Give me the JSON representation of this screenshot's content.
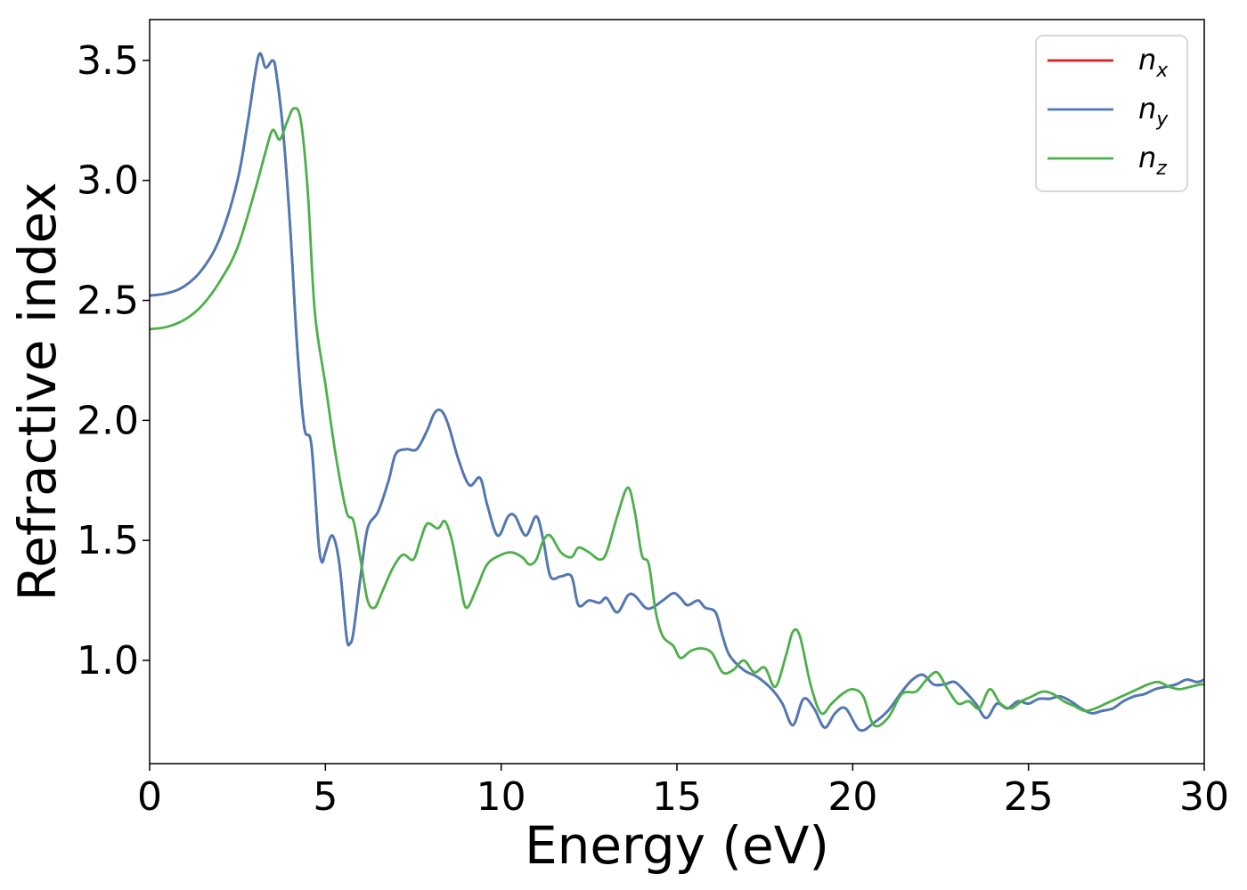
{
  "chart_data": {
    "type": "line",
    "title": "",
    "xlabel": "Energy (eV)",
    "ylabel": "Refractive index",
    "xlim": [
      0,
      30
    ],
    "ylim": [
      0.57,
      3.67
    ],
    "xticks": [
      0,
      5,
      10,
      15,
      20,
      25,
      30
    ],
    "xtick_labels": [
      "0",
      "5",
      "10",
      "15",
      "20",
      "25",
      "30"
    ],
    "yticks": [
      1.0,
      1.5,
      2.0,
      2.5,
      3.0,
      3.5
    ],
    "ytick_labels": [
      "1.0",
      "1.5",
      "2.0",
      "2.5",
      "3.0",
      "3.5"
    ],
    "grid": false,
    "legend_position": "top-right",
    "series": [
      {
        "name": "n",
        "subscript": "x",
        "color": "#e41a1c",
        "x": [
          0,
          0.5,
          1.0,
          1.5,
          2.0,
          2.5,
          2.8,
          3.1,
          3.3,
          3.5,
          3.6,
          3.8,
          4.0,
          4.2,
          4.4,
          4.6,
          4.8,
          4.9,
          5.0,
          5.2,
          5.4,
          5.6,
          5.7,
          5.8,
          6.0,
          6.2,
          6.5,
          6.8,
          7.0,
          7.3,
          7.6,
          7.9,
          8.1,
          8.3,
          8.5,
          8.8,
          9.1,
          9.4,
          9.6,
          9.9,
          10.2,
          10.4,
          10.7,
          11.0,
          11.2,
          11.4,
          11.7,
          12.0,
          12.2,
          12.5,
          12.8,
          13.0,
          13.3,
          13.6,
          13.8,
          14.1,
          14.3,
          14.6,
          14.9,
          15.1,
          15.3,
          15.6,
          15.8,
          16.1,
          16.3,
          16.5,
          16.9,
          17.3,
          17.7,
          18.0,
          18.3,
          18.6,
          18.9,
          19.2,
          19.5,
          19.8,
          20.2,
          20.6,
          21.0,
          21.4,
          21.7,
          22.0,
          22.3,
          22.6,
          22.9,
          23.2,
          23.5,
          23.8,
          24.1,
          24.4,
          24.7,
          25.0,
          25.3,
          25.6,
          25.9,
          26.2,
          26.5,
          26.8,
          27.1,
          27.4,
          27.7,
          28.0,
          28.3,
          28.6,
          28.9,
          29.2,
          29.5,
          29.8,
          30.0
        ],
        "y": [
          2.52,
          2.53,
          2.56,
          2.63,
          2.76,
          3.0,
          3.25,
          3.52,
          3.47,
          3.5,
          3.45,
          3.2,
          2.8,
          2.3,
          1.97,
          1.9,
          1.5,
          1.41,
          1.45,
          1.52,
          1.4,
          1.1,
          1.07,
          1.12,
          1.35,
          1.55,
          1.62,
          1.75,
          1.86,
          1.88,
          1.88,
          1.96,
          2.03,
          2.04,
          1.98,
          1.83,
          1.73,
          1.76,
          1.65,
          1.52,
          1.6,
          1.6,
          1.52,
          1.6,
          1.5,
          1.35,
          1.35,
          1.35,
          1.23,
          1.25,
          1.24,
          1.26,
          1.2,
          1.27,
          1.27,
          1.22,
          1.22,
          1.25,
          1.28,
          1.26,
          1.23,
          1.25,
          1.22,
          1.2,
          1.1,
          1.02,
          0.96,
          0.93,
          0.88,
          0.82,
          0.73,
          0.84,
          0.8,
          0.72,
          0.78,
          0.8,
          0.71,
          0.74,
          0.79,
          0.87,
          0.92,
          0.94,
          0.9,
          0.9,
          0.91,
          0.87,
          0.82,
          0.76,
          0.82,
          0.8,
          0.83,
          0.82,
          0.84,
          0.84,
          0.85,
          0.83,
          0.8,
          0.78,
          0.79,
          0.8,
          0.83,
          0.85,
          0.86,
          0.88,
          0.89,
          0.9,
          0.92,
          0.91,
          0.92
        ]
      },
      {
        "name": "n",
        "subscript": "y",
        "color": "#4a7bb7",
        "x": [
          0,
          0.5,
          1.0,
          1.5,
          2.0,
          2.5,
          2.8,
          3.1,
          3.3,
          3.5,
          3.6,
          3.8,
          4.0,
          4.2,
          4.4,
          4.6,
          4.8,
          4.9,
          5.0,
          5.2,
          5.4,
          5.6,
          5.7,
          5.8,
          6.0,
          6.2,
          6.5,
          6.8,
          7.0,
          7.3,
          7.6,
          7.9,
          8.1,
          8.3,
          8.5,
          8.8,
          9.1,
          9.4,
          9.6,
          9.9,
          10.2,
          10.4,
          10.7,
          11.0,
          11.2,
          11.4,
          11.7,
          12.0,
          12.2,
          12.5,
          12.8,
          13.0,
          13.3,
          13.6,
          13.8,
          14.1,
          14.3,
          14.6,
          14.9,
          15.1,
          15.3,
          15.6,
          15.8,
          16.1,
          16.3,
          16.5,
          16.9,
          17.3,
          17.7,
          18.0,
          18.3,
          18.6,
          18.9,
          19.2,
          19.5,
          19.8,
          20.2,
          20.6,
          21.0,
          21.4,
          21.7,
          22.0,
          22.3,
          22.6,
          22.9,
          23.2,
          23.5,
          23.8,
          24.1,
          24.4,
          24.7,
          25.0,
          25.3,
          25.6,
          25.9,
          26.2,
          26.5,
          26.8,
          27.1,
          27.4,
          27.7,
          28.0,
          28.3,
          28.6,
          28.9,
          29.2,
          29.5,
          29.8,
          30.0
        ],
        "y": [
          2.52,
          2.53,
          2.56,
          2.63,
          2.76,
          3.0,
          3.25,
          3.52,
          3.47,
          3.5,
          3.45,
          3.2,
          2.8,
          2.3,
          1.97,
          1.9,
          1.5,
          1.41,
          1.45,
          1.52,
          1.4,
          1.1,
          1.07,
          1.12,
          1.35,
          1.55,
          1.62,
          1.75,
          1.86,
          1.88,
          1.88,
          1.96,
          2.03,
          2.04,
          1.98,
          1.83,
          1.73,
          1.76,
          1.65,
          1.52,
          1.6,
          1.6,
          1.52,
          1.6,
          1.5,
          1.35,
          1.35,
          1.35,
          1.23,
          1.25,
          1.24,
          1.26,
          1.2,
          1.27,
          1.27,
          1.22,
          1.22,
          1.25,
          1.28,
          1.26,
          1.23,
          1.25,
          1.22,
          1.2,
          1.1,
          1.02,
          0.96,
          0.93,
          0.88,
          0.82,
          0.73,
          0.84,
          0.8,
          0.72,
          0.78,
          0.8,
          0.71,
          0.74,
          0.79,
          0.87,
          0.92,
          0.94,
          0.9,
          0.9,
          0.91,
          0.87,
          0.82,
          0.76,
          0.82,
          0.8,
          0.83,
          0.82,
          0.84,
          0.84,
          0.85,
          0.83,
          0.8,
          0.78,
          0.79,
          0.8,
          0.83,
          0.85,
          0.86,
          0.88,
          0.89,
          0.9,
          0.92,
          0.91,
          0.92
        ]
      },
      {
        "name": "n",
        "subscript": "z",
        "color": "#4daf4a",
        "x": [
          0,
          0.5,
          1.0,
          1.5,
          2.0,
          2.5,
          3.0,
          3.3,
          3.5,
          3.7,
          3.9,
          4.1,
          4.3,
          4.5,
          4.7,
          5.0,
          5.3,
          5.6,
          5.8,
          6.0,
          6.2,
          6.4,
          6.6,
          6.9,
          7.2,
          7.5,
          7.7,
          7.9,
          8.2,
          8.4,
          8.6,
          8.8,
          9.0,
          9.3,
          9.6,
          10.0,
          10.3,
          10.6,
          10.8,
          11.0,
          11.2,
          11.4,
          11.7,
          12.0,
          12.2,
          12.5,
          12.8,
          13.0,
          13.3,
          13.6,
          13.8,
          14.0,
          14.2,
          14.4,
          14.6,
          14.9,
          15.1,
          15.4,
          15.7,
          16.0,
          16.3,
          16.6,
          16.9,
          17.2,
          17.5,
          17.8,
          18.1,
          18.3,
          18.5,
          18.8,
          19.1,
          19.4,
          19.7,
          20.0,
          20.3,
          20.6,
          21.0,
          21.4,
          21.8,
          22.1,
          22.4,
          22.7,
          23.0,
          23.3,
          23.6,
          23.9,
          24.2,
          24.5,
          24.8,
          25.1,
          25.4,
          25.7,
          26.0,
          26.3,
          26.6,
          26.9,
          27.2,
          27.5,
          27.8,
          28.1,
          28.4,
          28.7,
          29.0,
          29.3,
          29.6,
          29.9,
          30.0
        ],
        "y": [
          2.38,
          2.39,
          2.42,
          2.48,
          2.58,
          2.72,
          2.96,
          3.12,
          3.21,
          3.17,
          3.24,
          3.3,
          3.25,
          2.95,
          2.45,
          2.15,
          1.85,
          1.62,
          1.58,
          1.42,
          1.25,
          1.22,
          1.28,
          1.38,
          1.44,
          1.42,
          1.5,
          1.57,
          1.55,
          1.58,
          1.5,
          1.35,
          1.22,
          1.3,
          1.4,
          1.44,
          1.45,
          1.43,
          1.4,
          1.42,
          1.5,
          1.52,
          1.45,
          1.43,
          1.47,
          1.45,
          1.42,
          1.45,
          1.6,
          1.72,
          1.62,
          1.44,
          1.4,
          1.2,
          1.1,
          1.06,
          1.01,
          1.04,
          1.05,
          1.03,
          0.95,
          0.96,
          1.0,
          0.95,
          0.97,
          0.89,
          1.02,
          1.12,
          1.1,
          0.9,
          0.78,
          0.82,
          0.86,
          0.88,
          0.85,
          0.73,
          0.76,
          0.86,
          0.87,
          0.92,
          0.95,
          0.88,
          0.82,
          0.83,
          0.8,
          0.88,
          0.82,
          0.8,
          0.83,
          0.85,
          0.87,
          0.86,
          0.83,
          0.81,
          0.79,
          0.8,
          0.82,
          0.84,
          0.86,
          0.88,
          0.9,
          0.91,
          0.89,
          0.88,
          0.89,
          0.9,
          0.9
        ]
      }
    ]
  }
}
